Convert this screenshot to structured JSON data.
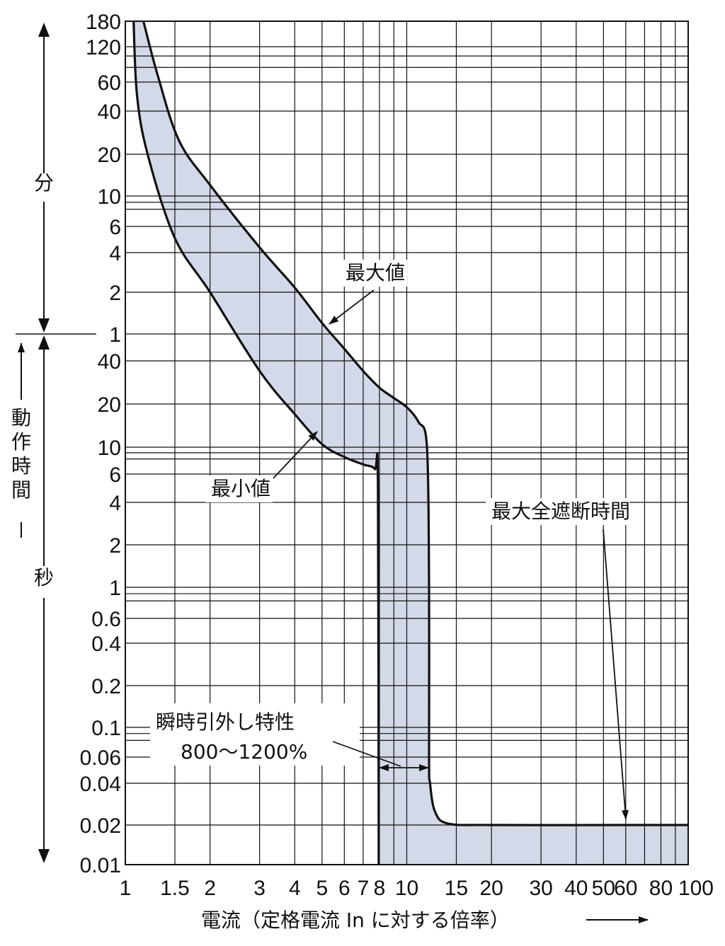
{
  "chart_data": {
    "type": "area",
    "xscale": "log",
    "xlim": [
      1,
      100
    ],
    "x_ticks": [
      {
        "v": 1,
        "label": "1"
      },
      {
        "v": 1.5,
        "label": "1.5"
      },
      {
        "v": 2,
        "label": "2"
      },
      {
        "v": 3,
        "label": "3"
      },
      {
        "v": 4,
        "label": "4"
      },
      {
        "v": 5,
        "label": "5"
      },
      {
        "v": 6,
        "label": "6"
      },
      {
        "v": 7,
        "label": "7"
      },
      {
        "v": 8,
        "label": "8"
      },
      {
        "v": 10,
        "label": "10"
      },
      {
        "v": 15,
        "label": "15"
      },
      {
        "v": 20,
        "label": "20"
      },
      {
        "v": 30,
        "label": "30"
      },
      {
        "v": 40,
        "label": "40"
      },
      {
        "v": 50,
        "label": "50"
      },
      {
        "v": 60,
        "label": "60"
      },
      {
        "v": 80,
        "label": "80"
      },
      {
        "v": 100,
        "label": "100"
      }
    ],
    "x_gridlines": [
      1,
      1.5,
      2,
      3,
      4,
      5,
      6,
      7,
      8,
      9,
      10,
      15,
      20,
      30,
      40,
      50,
      60,
      70,
      80,
      90,
      100
    ],
    "xlabel": "電流（定格電流 In に対する倍率）",
    "xlabel_arrow": "→",
    "y_ticks": [
      {
        "seconds": 10800,
        "label": "180",
        "unit": "分"
      },
      {
        "seconds": 7200,
        "label": "120",
        "unit": "分"
      },
      {
        "seconds": 3600,
        "label": "60",
        "unit": "分"
      },
      {
        "seconds": 2400,
        "label": "40",
        "unit": "分"
      },
      {
        "seconds": 1200,
        "label": "20",
        "unit": "分"
      },
      {
        "seconds": 600,
        "label": "10",
        "unit": "分"
      },
      {
        "seconds": 360,
        "label": "6",
        "unit": "分"
      },
      {
        "seconds": 240,
        "label": "4",
        "unit": "分"
      },
      {
        "seconds": 120,
        "label": "2",
        "unit": "分"
      },
      {
        "seconds": 60,
        "label": "1",
        "unit": "分"
      },
      {
        "seconds": 40,
        "label": "40",
        "unit": "秒"
      },
      {
        "seconds": 20,
        "label": "20",
        "unit": "秒"
      },
      {
        "seconds": 10,
        "label": "10",
        "unit": "秒"
      },
      {
        "seconds": 6,
        "label": "6",
        "unit": "秒"
      },
      {
        "seconds": 4,
        "label": "4",
        "unit": "秒"
      },
      {
        "seconds": 2,
        "label": "2",
        "unit": "秒"
      },
      {
        "seconds": 1,
        "label": "1",
        "unit": "秒"
      },
      {
        "seconds": 0.6,
        "label": "0.6",
        "unit": "秒"
      },
      {
        "seconds": 0.4,
        "label": "0.4",
        "unit": "秒"
      },
      {
        "seconds": 0.2,
        "label": "0.2",
        "unit": "秒"
      },
      {
        "seconds": 0.1,
        "label": "0.1",
        "unit": "秒"
      },
      {
        "seconds": 0.06,
        "label": "0.06",
        "unit": "秒"
      },
      {
        "seconds": 0.04,
        "label": "0.04",
        "unit": "秒"
      },
      {
        "seconds": 0.02,
        "label": "0.02",
        "unit": "秒"
      },
      {
        "seconds": 0.01,
        "label": "0.01",
        "unit": "秒"
      }
    ],
    "y_gridlines_seconds": [
      10800,
      7200,
      6000,
      4800,
      3600,
      2400,
      1200,
      600,
      540,
      480,
      360,
      240,
      120,
      60,
      40,
      20,
      10,
      9,
      8,
      6,
      4,
      2,
      1,
      0.9,
      0.8,
      0.6,
      0.4,
      0.2,
      0.1,
      0.09,
      0.08,
      0.06,
      0.04,
      0.02,
      0.01
    ],
    "ylabel": "動作時間",
    "ylabel_minutes": "分",
    "ylabel_seconds": "秒",
    "series": [
      {
        "name": "最大値",
        "points": [
          [
            1.16,
            10800
          ],
          [
            1.3,
            4200
          ],
          [
            1.55,
            1500
          ],
          [
            2,
            720
          ],
          [
            3,
            260
          ],
          [
            4,
            130
          ],
          [
            5,
            72
          ],
          [
            6,
            48
          ],
          [
            7,
            34
          ],
          [
            8,
            26
          ],
          [
            9,
            22
          ],
          [
            10,
            19
          ],
          [
            11,
            15
          ],
          [
            11.8,
            10
          ],
          [
            12,
            1
          ],
          [
            12,
            0.06
          ],
          [
            12.1,
            0.04
          ],
          [
            12.6,
            0.025
          ],
          [
            14,
            0.0205
          ],
          [
            20,
            0.02
          ],
          [
            60,
            0.02
          ],
          [
            100,
            0.02
          ]
        ]
      },
      {
        "name": "最小値",
        "points": [
          [
            1.07,
            10800
          ],
          [
            1.1,
            3000
          ],
          [
            1.2,
            1200
          ],
          [
            1.5,
            300
          ],
          [
            2,
            120
          ],
          [
            3,
            34
          ],
          [
            4,
            17
          ],
          [
            5,
            10.5
          ],
          [
            6,
            8.3
          ],
          [
            7,
            7.2
          ],
          [
            7.7,
            6.6
          ],
          [
            7.9,
            5
          ],
          [
            7.95,
            0.01
          ]
        ]
      }
    ],
    "fill_color": "#d3d9e8",
    "line_color": "#111111",
    "annotations": [
      {
        "text": "最大値",
        "x": 4.4,
        "y_seconds": 115
      },
      {
        "text": "最小値",
        "x": 2.3,
        "y_seconds": 5
      },
      {
        "text": "最大全遮断時間",
        "x": 30,
        "y_seconds": 4
      },
      {
        "text": "瞬時引外し特性",
        "x": 5,
        "y_seconds": 0.1
      },
      {
        "text": "800〜1200%",
        "x": 5,
        "y_seconds": 0.06
      }
    ]
  }
}
